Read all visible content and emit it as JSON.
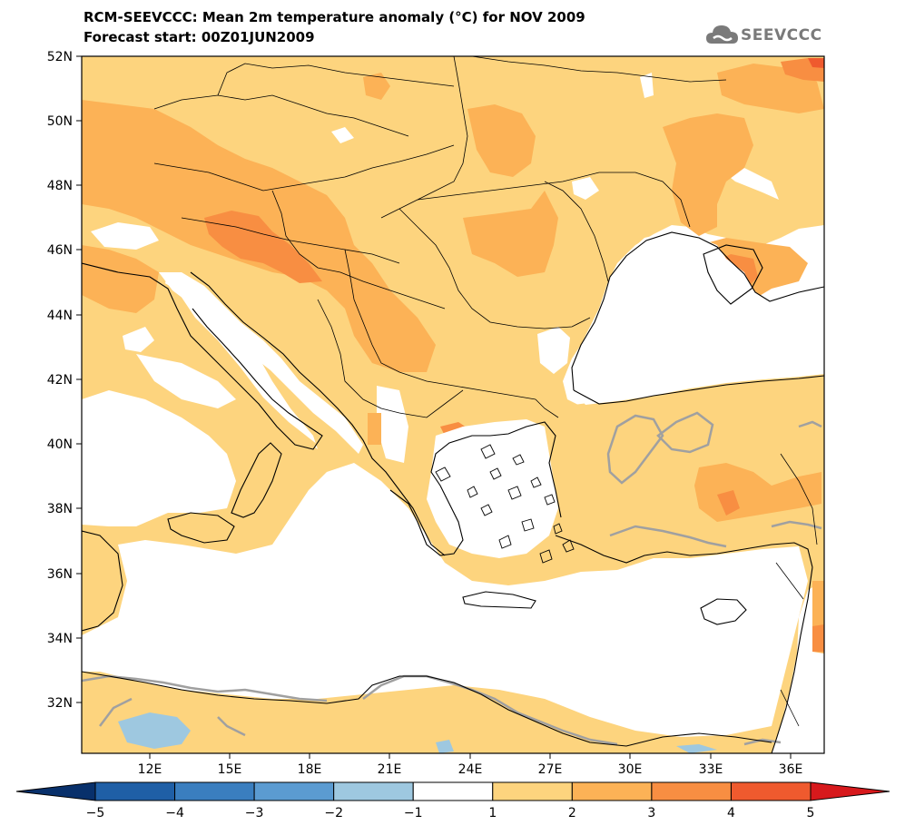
{
  "header": {
    "title_line1": "RCM-SEEVCCC: Mean 2m temperature anomaly (°C) for NOV 2009",
    "title_line2": "Forecast start: 00Z01JUN2009",
    "logo_text": "SEEVCCC"
  },
  "map": {
    "lat_labels": [
      "52N",
      "50N",
      "48N",
      "46N",
      "44N",
      "42N",
      "40N",
      "38N",
      "36N",
      "34N",
      "32N"
    ],
    "lon_labels": [
      "12E",
      "15E",
      "18E",
      "21E",
      "24E",
      "27E",
      "30E",
      "33E",
      "36E"
    ]
  },
  "colorbar": {
    "labels": [
      "−5",
      "−4",
      "−3",
      "−2",
      "−1",
      "1",
      "2",
      "3",
      "4",
      "5"
    ],
    "colors": [
      "#1f5fa6",
      "#3a7ebf",
      "#5b9bd1",
      "#9ec8e0",
      "#ffffff",
      "#fdd47e",
      "#fcb256",
      "#f88e42",
      "#ef5a2e"
    ],
    "low_arrow_color": "#08306b",
    "high_arrow_color": "#d7191c"
  },
  "colors": {
    "anom_1_2": "#fdd47e",
    "anom_2_3": "#fcb256",
    "anom_3_4": "#f88e42",
    "anom_4_5": "#ef5a2e",
    "anom_neg_1_2": "#9ec8e0",
    "zero_contour": "#a0a0a0"
  }
}
